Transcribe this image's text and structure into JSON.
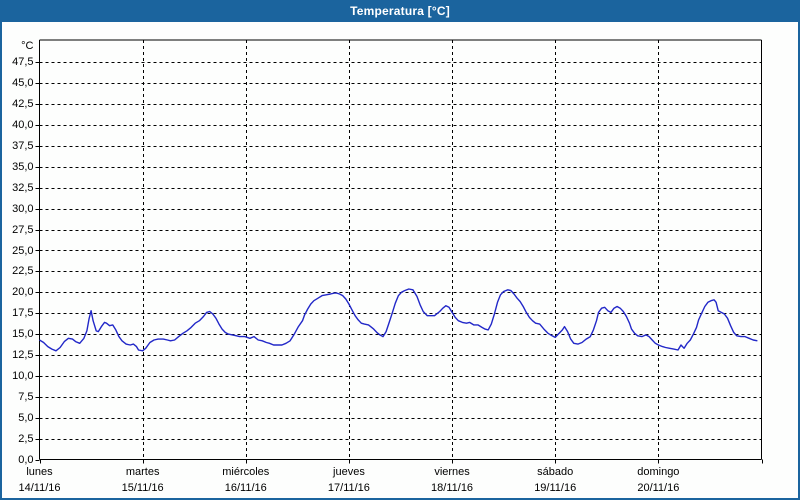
{
  "window": {
    "title": "Temperatura [°C]"
  },
  "colors": {
    "titlebar_bg": "#1B649E",
    "window_border": "#1B649E",
    "plot_bg": "#FDFEFD",
    "grid": "#000000",
    "axis": "#000000",
    "label_text": "#000000",
    "line": "#2228C8",
    "title_text": "#FFFFFF"
  },
  "chart_data": {
    "type": "line",
    "title": "Temperatura [°C]",
    "y_axis": {
      "unit": "°C",
      "min": 0,
      "max": 47.5,
      "step": 2.5,
      "tick_labels": [
        "47,5",
        "45,0",
        "42,5",
        "40,0",
        "37,5",
        "35,0",
        "32,5",
        "30,0",
        "27,5",
        "25,0",
        "22,5",
        "20,0",
        "17,5",
        "15,0",
        "12,5",
        "10,0",
        "7,5",
        "5,0",
        "2,5",
        "0,0"
      ],
      "tick_values": [
        47.5,
        45.0,
        42.5,
        40.0,
        37.5,
        35.0,
        32.5,
        30.0,
        27.5,
        25.0,
        22.5,
        20.0,
        17.5,
        15.0,
        12.5,
        10.0,
        7.5,
        5.0,
        2.5,
        0.0
      ]
    },
    "x_axis": {
      "days": [
        {
          "name": "lunes",
          "date": "14/11/16"
        },
        {
          "name": "martes",
          "date": "15/11/16"
        },
        {
          "name": "miércoles",
          "date": "16/11/16"
        },
        {
          "name": "jueves",
          "date": "17/11/16"
        },
        {
          "name": "viernes",
          "date": "18/11/16"
        },
        {
          "name": "sábado",
          "date": "19/11/16"
        },
        {
          "name": "domingo",
          "date": "20/11/16"
        }
      ]
    },
    "grid": "dashed",
    "legend": "none",
    "series": [
      {
        "name": "Temperatura",
        "x_unit": "days_from_start",
        "points": [
          [
            0.0,
            14.3
          ],
          [
            0.04,
            14.0
          ],
          [
            0.08,
            13.5
          ],
          [
            0.12,
            13.2
          ],
          [
            0.16,
            13.0
          ],
          [
            0.2,
            13.4
          ],
          [
            0.24,
            14.1
          ],
          [
            0.28,
            14.5
          ],
          [
            0.32,
            14.4
          ],
          [
            0.35,
            14.1
          ],
          [
            0.39,
            13.9
          ],
          [
            0.43,
            14.5
          ],
          [
            0.46,
            15.4
          ],
          [
            0.48,
            16.8
          ],
          [
            0.5,
            17.8
          ],
          [
            0.52,
            16.6
          ],
          [
            0.55,
            15.4
          ],
          [
            0.57,
            15.3
          ],
          [
            0.6,
            15.9
          ],
          [
            0.63,
            16.4
          ],
          [
            0.65,
            16.3
          ],
          [
            0.68,
            16.0
          ],
          [
            0.71,
            16.1
          ],
          [
            0.74,
            15.5
          ],
          [
            0.77,
            14.7
          ],
          [
            0.8,
            14.2
          ],
          [
            0.84,
            13.8
          ],
          [
            0.88,
            13.7
          ],
          [
            0.91,
            13.8
          ],
          [
            0.94,
            13.5
          ],
          [
            0.96,
            13.1
          ],
          [
            1.0,
            13.0
          ],
          [
            1.03,
            13.3
          ],
          [
            1.07,
            14.0
          ],
          [
            1.11,
            14.3
          ],
          [
            1.15,
            14.4
          ],
          [
            1.2,
            14.4
          ],
          [
            1.24,
            14.3
          ],
          [
            1.27,
            14.2
          ],
          [
            1.31,
            14.3
          ],
          [
            1.35,
            14.7
          ],
          [
            1.39,
            15.1
          ],
          [
            1.43,
            15.4
          ],
          [
            1.47,
            15.8
          ],
          [
            1.51,
            16.3
          ],
          [
            1.55,
            16.6
          ],
          [
            1.59,
            17.1
          ],
          [
            1.62,
            17.6
          ],
          [
            1.65,
            17.7
          ],
          [
            1.68,
            17.4
          ],
          [
            1.71,
            16.9
          ],
          [
            1.74,
            16.2
          ],
          [
            1.77,
            15.6
          ],
          [
            1.8,
            15.2
          ],
          [
            1.83,
            15.0
          ],
          [
            1.87,
            14.9
          ],
          [
            1.91,
            14.8
          ],
          [
            1.94,
            14.7
          ],
          [
            1.99,
            14.7
          ],
          [
            2.04,
            14.5
          ],
          [
            2.08,
            14.7
          ],
          [
            2.12,
            14.3
          ],
          [
            2.16,
            14.2
          ],
          [
            2.2,
            14.0
          ],
          [
            2.23,
            13.9
          ],
          [
            2.27,
            13.7
          ],
          [
            2.31,
            13.7
          ],
          [
            2.35,
            13.7
          ],
          [
            2.39,
            13.9
          ],
          [
            2.43,
            14.2
          ],
          [
            2.47,
            15.0
          ],
          [
            2.51,
            15.9
          ],
          [
            2.55,
            16.6
          ],
          [
            2.57,
            17.3
          ],
          [
            2.6,
            18.0
          ],
          [
            2.63,
            18.6
          ],
          [
            2.66,
            19.0
          ],
          [
            2.7,
            19.3
          ],
          [
            2.74,
            19.6
          ],
          [
            2.78,
            19.7
          ],
          [
            2.82,
            19.8
          ],
          [
            2.86,
            19.9
          ],
          [
            2.88,
            19.9
          ],
          [
            2.91,
            19.8
          ],
          [
            2.94,
            19.6
          ],
          [
            2.97,
            19.2
          ],
          [
            3.0,
            18.6
          ],
          [
            3.03,
            17.9
          ],
          [
            3.06,
            17.2
          ],
          [
            3.09,
            16.7
          ],
          [
            3.12,
            16.3
          ],
          [
            3.15,
            16.2
          ],
          [
            3.19,
            16.1
          ],
          [
            3.21,
            15.9
          ],
          [
            3.24,
            15.6
          ],
          [
            3.27,
            15.2
          ],
          [
            3.3,
            14.9
          ],
          [
            3.33,
            14.7
          ],
          [
            3.36,
            15.3
          ],
          [
            3.39,
            16.4
          ],
          [
            3.42,
            17.5
          ],
          [
            3.45,
            18.7
          ],
          [
            3.48,
            19.6
          ],
          [
            3.51,
            20.0
          ],
          [
            3.54,
            20.2
          ],
          [
            3.58,
            20.4
          ],
          [
            3.62,
            20.3
          ],
          [
            3.66,
            19.5
          ],
          [
            3.69,
            18.5
          ],
          [
            3.72,
            17.7
          ],
          [
            3.76,
            17.2
          ],
          [
            3.8,
            17.2
          ],
          [
            3.83,
            17.2
          ],
          [
            3.88,
            17.7
          ],
          [
            3.91,
            18.1
          ],
          [
            3.94,
            18.4
          ],
          [
            3.97,
            18.2
          ],
          [
            4.0,
            17.6
          ],
          [
            4.03,
            17.0
          ],
          [
            4.06,
            16.6
          ],
          [
            4.1,
            16.4
          ],
          [
            4.14,
            16.3
          ],
          [
            4.17,
            16.4
          ],
          [
            4.21,
            16.1
          ],
          [
            4.25,
            16.1
          ],
          [
            4.29,
            15.8
          ],
          [
            4.32,
            15.6
          ],
          [
            4.35,
            15.5
          ],
          [
            4.38,
            16.2
          ],
          [
            4.41,
            17.4
          ],
          [
            4.44,
            18.8
          ],
          [
            4.47,
            19.7
          ],
          [
            4.5,
            20.1
          ],
          [
            4.54,
            20.3
          ],
          [
            4.57,
            20.2
          ],
          [
            4.6,
            19.8
          ],
          [
            4.63,
            19.3
          ],
          [
            4.66,
            18.9
          ],
          [
            4.69,
            18.3
          ],
          [
            4.72,
            17.6
          ],
          [
            4.75,
            17.0
          ],
          [
            4.78,
            16.6
          ],
          [
            4.81,
            16.3
          ],
          [
            4.85,
            16.2
          ],
          [
            4.89,
            15.6
          ],
          [
            4.93,
            15.1
          ],
          [
            4.97,
            14.8
          ],
          [
            5.0,
            14.6
          ],
          [
            5.03,
            15.0
          ],
          [
            5.07,
            15.5
          ],
          [
            5.09,
            15.9
          ],
          [
            5.12,
            15.3
          ],
          [
            5.15,
            14.4
          ],
          [
            5.18,
            13.9
          ],
          [
            5.22,
            13.8
          ],
          [
            5.26,
            14.0
          ],
          [
            5.3,
            14.4
          ],
          [
            5.34,
            14.7
          ],
          [
            5.37,
            15.5
          ],
          [
            5.4,
            16.6
          ],
          [
            5.42,
            17.6
          ],
          [
            5.45,
            18.1
          ],
          [
            5.48,
            18.2
          ],
          [
            5.51,
            17.8
          ],
          [
            5.54,
            17.6
          ],
          [
            5.57,
            18.1
          ],
          [
            5.6,
            18.3
          ],
          [
            5.63,
            18.1
          ],
          [
            5.66,
            17.7
          ],
          [
            5.69,
            17.1
          ],
          [
            5.72,
            16.3
          ],
          [
            5.74,
            15.6
          ],
          [
            5.77,
            15.1
          ],
          [
            5.8,
            14.8
          ],
          [
            5.84,
            14.7
          ],
          [
            5.88,
            14.9
          ],
          [
            5.91,
            14.7
          ],
          [
            5.94,
            14.3
          ],
          [
            5.97,
            13.9
          ],
          [
            6.0,
            13.7
          ],
          [
            6.04,
            13.5
          ],
          [
            6.07,
            13.4
          ],
          [
            6.11,
            13.3
          ],
          [
            6.15,
            13.2
          ],
          [
            6.19,
            13.1
          ],
          [
            6.22,
            13.7
          ],
          [
            6.25,
            13.3
          ],
          [
            6.28,
            13.9
          ],
          [
            6.31,
            14.3
          ],
          [
            6.34,
            15.0
          ],
          [
            6.37,
            15.8
          ],
          [
            6.39,
            16.7
          ],
          [
            6.42,
            17.5
          ],
          [
            6.45,
            18.3
          ],
          [
            6.48,
            18.8
          ],
          [
            6.51,
            19.0
          ],
          [
            6.54,
            19.1
          ],
          [
            6.56,
            18.8
          ],
          [
            6.58,
            17.8
          ],
          [
            6.61,
            17.6
          ],
          [
            6.64,
            17.4
          ],
          [
            6.67,
            16.9
          ],
          [
            6.7,
            16.0
          ],
          [
            6.73,
            15.2
          ],
          [
            6.76,
            14.8
          ],
          [
            6.8,
            14.7
          ],
          [
            6.84,
            14.7
          ],
          [
            6.88,
            14.5
          ],
          [
            6.92,
            14.3
          ],
          [
            6.96,
            14.2
          ]
        ]
      }
    ]
  }
}
